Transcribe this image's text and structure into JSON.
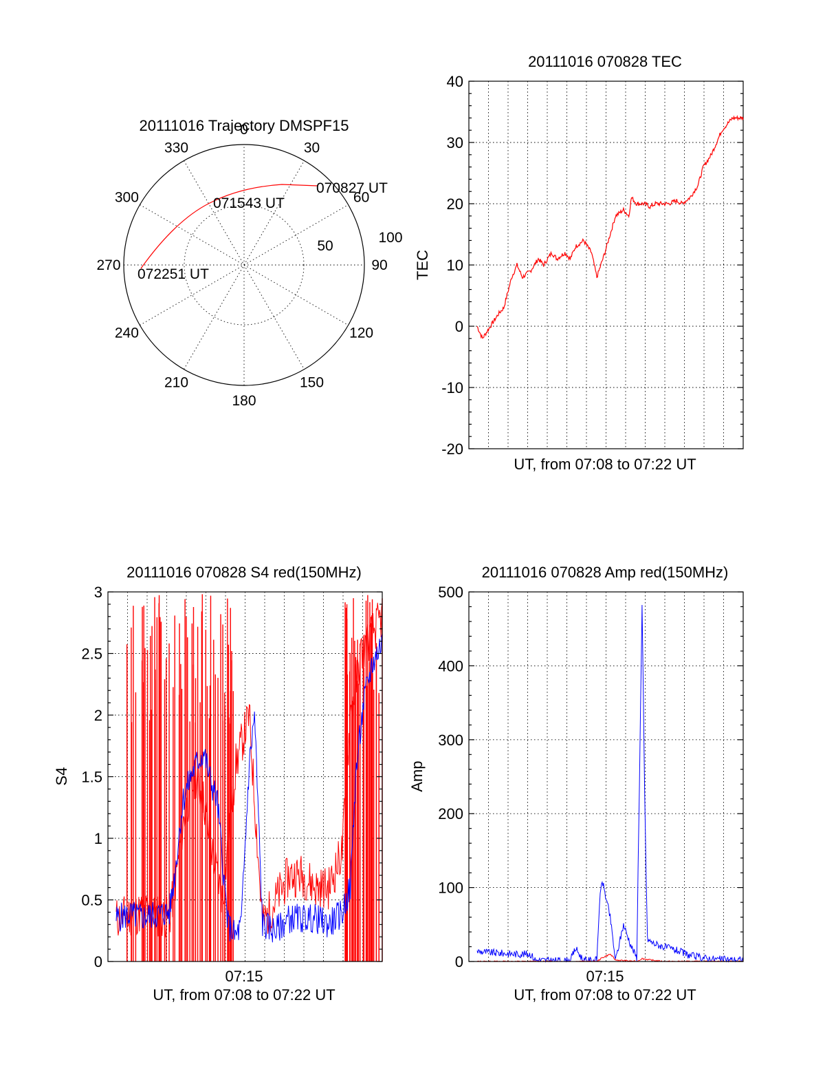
{
  "colors": {
    "red": "#ff0000",
    "blue": "#0000ff",
    "axis": "#000000"
  },
  "chart_data": [
    {
      "type": "polar",
      "title": "20111016 Trajectory DMSPF15",
      "azimuth_labels": [
        "0",
        "30",
        "60",
        "90",
        "120",
        "150",
        "180",
        "210",
        "240",
        "270",
        "300",
        "330"
      ],
      "elevation_labels": [
        "50",
        "100"
      ],
      "series": [
        {
          "color": "red",
          "points": [
            [
              90,
              275
            ],
            [
              60,
              290
            ],
            [
              45,
              300
            ],
            [
              30,
              307
            ],
            [
              20,
              310
            ],
            [
              0,
              312
            ],
            [
              -20,
              313
            ],
            [
              -40,
              313
            ],
            [
              -60,
              312
            ]
          ]
        }
      ],
      "annotations": [
        "070827 UT",
        "071543 UT",
        "072251 UT"
      ]
    },
    {
      "type": "line",
      "title": "20111016 070828 TEC",
      "xlabel": "UT, from 07:08 to 07:22 UT",
      "ylabel": "TEC",
      "ylim": [
        -20,
        40
      ],
      "yticks": [
        "-20",
        "-10",
        "0",
        "10",
        "20",
        "30",
        "40"
      ],
      "grid": true,
      "series": [
        {
          "color": "red",
          "x": [
            0,
            0.02,
            0.05,
            0.08,
            0.1,
            0.13,
            0.15,
            0.17,
            0.2,
            0.23,
            0.25,
            0.28,
            0.3,
            0.33,
            0.35,
            0.37,
            0.4,
            0.43,
            0.45,
            0.48,
            0.5,
            0.52,
            0.55,
            0.57,
            0.58,
            0.6,
            0.63,
            0.65,
            0.67,
            0.7,
            0.72,
            0.75,
            0.77,
            0.8,
            0.83,
            0.85,
            0.88,
            0.9,
            0.92,
            0.94,
            0.96,
            0.98,
            1.0
          ],
          "y": [
            0,
            -2,
            0,
            2,
            3,
            8,
            10,
            8,
            9,
            11,
            10,
            12,
            11,
            12,
            11,
            13,
            14,
            12,
            8,
            12,
            15,
            18,
            19,
            18,
            21,
            20,
            20,
            19.5,
            20,
            20,
            20,
            20.5,
            20,
            21,
            23,
            26,
            28,
            30,
            32,
            33,
            34,
            34,
            34
          ]
        }
      ]
    },
    {
      "type": "line",
      "title": "20111016 070828 S4 red(150MHz)",
      "xlabel": "UT, from 07:08 to 07:22 UT",
      "xticks": [
        "07:15"
      ],
      "ylabel": "S4",
      "ylim": [
        0,
        3
      ],
      "yticks": [
        "0",
        "0.5",
        "1",
        "1.5",
        "2",
        "2.5",
        "3"
      ],
      "grid": true,
      "series": [
        {
          "color": "red",
          "x": [
            0,
            0.1,
            0.2,
            0.22,
            0.25,
            0.28,
            0.3,
            0.33,
            0.35,
            0.4,
            0.45,
            0.5,
            0.55,
            0.6,
            0.65,
            0.7,
            0.75,
            0.8,
            0.85,
            0.88,
            0.92,
            1.0
          ],
          "y": [
            0.35,
            0.4,
            0.35,
            0.6,
            1.1,
            1.4,
            1.5,
            1.3,
            1.0,
            0.5,
            1.6,
            2.0,
            0.3,
            0.5,
            0.7,
            0.7,
            0.6,
            0.6,
            0.9,
            2.0,
            2.5,
            2.8
          ]
        },
        {
          "color": "blue",
          "x": [
            0,
            0.05,
            0.1,
            0.15,
            0.2,
            0.22,
            0.25,
            0.28,
            0.3,
            0.33,
            0.35,
            0.38,
            0.42,
            0.45,
            0.47,
            0.5,
            0.52,
            0.55,
            0.6,
            0.65,
            0.7,
            0.75,
            0.8,
            0.85,
            0.88,
            0.9,
            0.93,
            0.96,
            1.0
          ],
          "y": [
            0.35,
            0.38,
            0.36,
            0.38,
            0.4,
            0.7,
            1.3,
            1.5,
            1.6,
            1.7,
            1.5,
            1.3,
            0.3,
            0.2,
            0.3,
            1.6,
            2.0,
            0.3,
            0.25,
            0.35,
            0.35,
            0.35,
            0.3,
            0.4,
            0.6,
            1.5,
            2.1,
            2.4,
            2.6
          ]
        }
      ]
    },
    {
      "type": "line",
      "title": "20111016 070828 Amp red(150MHz)",
      "xlabel": "UT, from 07:08 to 07:22 UT",
      "xticks": [
        "07:15"
      ],
      "ylabel": "Amp",
      "ylim": [
        0,
        500
      ],
      "yticks": [
        "0",
        "100",
        "200",
        "300",
        "400",
        "500"
      ],
      "grid": true,
      "series": [
        {
          "color": "blue",
          "x": [
            0,
            0.05,
            0.1,
            0.15,
            0.2,
            0.22,
            0.3,
            0.35,
            0.37,
            0.4,
            0.45,
            0.46,
            0.47,
            0.5,
            0.52,
            0.55,
            0.58,
            0.6,
            0.62,
            0.63,
            0.64,
            0.66,
            0.7,
            0.75,
            0.8,
            0.85,
            0.9,
            1.0
          ],
          "y": [
            14,
            12,
            11,
            10,
            10,
            2,
            1,
            1,
            18,
            1,
            2,
            80,
            110,
            60,
            1,
            50,
            20,
            5,
            480,
            220,
            30,
            25,
            20,
            15,
            8,
            5,
            3,
            2
          ]
        },
        {
          "color": "red",
          "x": [
            0,
            0.2,
            0.45,
            0.47,
            0.5,
            0.52,
            0.6,
            0.62,
            0.65,
            0.7,
            1.0
          ],
          "y": [
            0,
            0,
            0,
            5,
            10,
            2,
            0,
            4,
            2,
            0,
            0
          ]
        }
      ]
    }
  ]
}
